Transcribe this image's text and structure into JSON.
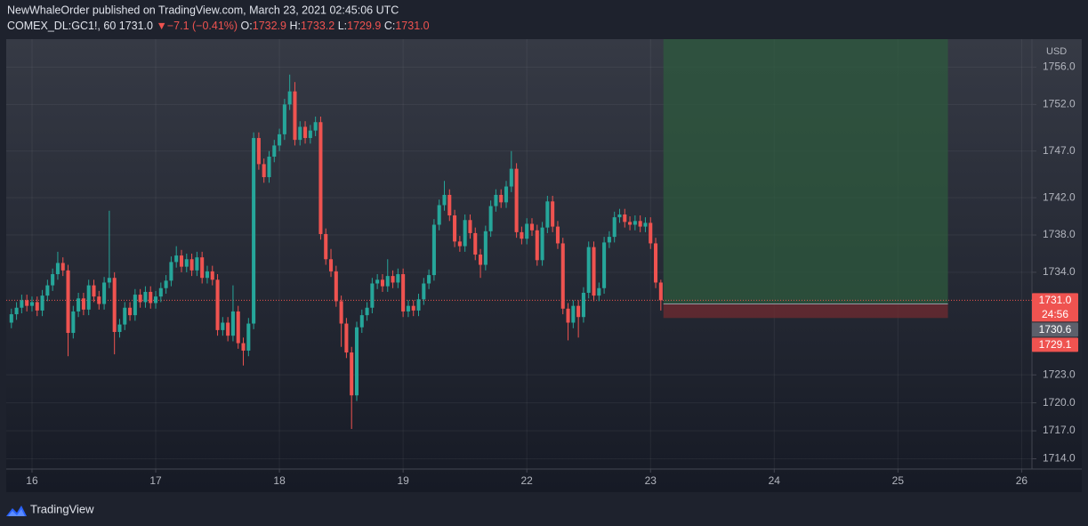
{
  "header": {
    "publisher": "NewWhaleOrder published on TradingView.com, March 23, 2021 02:45:06 UTC",
    "symbol": "COMEX_DL:GC1!, 60",
    "last": "1731.0",
    "arrow": "▼",
    "change": "−7.1 (−0.41%)",
    "ohlc": [
      {
        "key": "O:",
        "value": "1732.9"
      },
      {
        "key": "H:",
        "value": "1733.2"
      },
      {
        "key": "L:",
        "value": "1729.9"
      },
      {
        "key": "C:",
        "value": "1731.0"
      }
    ]
  },
  "footer": {
    "brand": "TradingView"
  },
  "chart_data": {
    "type": "candlestick",
    "currency": "USD",
    "up_color": "#26a69a",
    "down_color": "#ef5350",
    "grid": true,
    "xlim": [
      -1,
      198
    ],
    "xticks": [
      {
        "value": 4,
        "label": "16"
      },
      {
        "value": 28,
        "label": "17"
      },
      {
        "value": 52,
        "label": "18"
      },
      {
        "value": 76,
        "label": "19"
      },
      {
        "value": 100,
        "label": "22"
      },
      {
        "value": 124,
        "label": "23"
      },
      {
        "value": 148,
        "label": "24"
      },
      {
        "value": 172,
        "label": "25"
      },
      {
        "value": 196,
        "label": "26"
      }
    ],
    "ylim": [
      1712.9,
      1759.0
    ],
    "yticks": [
      {
        "value": 1756,
        "label": "1756.0"
      },
      {
        "value": 1752,
        "label": "1752.0"
      },
      {
        "value": 1747,
        "label": "1747.0"
      },
      {
        "value": 1742,
        "label": "1742.0"
      },
      {
        "value": 1738,
        "label": "1738.0"
      },
      {
        "value": 1734,
        "label": "1734.0"
      },
      {
        "value": 1723,
        "label": "1723.0"
      },
      {
        "value": 1720,
        "label": "1720.0"
      },
      {
        "value": 1717,
        "label": "1717.0"
      },
      {
        "value": 1714,
        "label": "1714.0"
      }
    ],
    "price_labels": [
      {
        "value": 1731.0,
        "label": "1731.0",
        "sub": "24:56",
        "color": "#ef5350"
      },
      {
        "value": 1730.6,
        "label": "1730.6",
        "color": "#5d606b"
      },
      {
        "value": 1729.1,
        "label": "1729.1",
        "color": "#ef5350"
      }
    ],
    "position": {
      "entry": 1730.6,
      "stop": 1729.1,
      "target": 1760,
      "start": 126.5,
      "end": 181.7,
      "profit_color": "#2e5a3e",
      "loss_color": "#6b2a30"
    },
    "candles": [
      [
        1728.6,
        1730.1,
        1728.0,
        1729.5
      ],
      [
        1729.5,
        1730.8,
        1728.9,
        1730.2
      ],
      [
        1730.2,
        1731.6,
        1729.6,
        1731.0
      ],
      [
        1731.0,
        1731.6,
        1729.8,
        1730.4
      ],
      [
        1730.4,
        1731.4,
        1729.8,
        1730.8
      ],
      [
        1730.8,
        1731.4,
        1729.3,
        1729.9
      ],
      [
        1729.9,
        1732.1,
        1729.3,
        1731.5
      ],
      [
        1731.5,
        1733.2,
        1730.9,
        1732.6
      ],
      [
        1732.6,
        1734.4,
        1732.0,
        1733.8
      ],
      [
        1733.8,
        1736.2,
        1733.2,
        1735.0
      ],
      [
        1735.0,
        1735.6,
        1733.6,
        1734.2
      ],
      [
        1734.2,
        1734.8,
        1725.0,
        1727.5
      ],
      [
        1727.5,
        1730.4,
        1726.9,
        1729.8
      ],
      [
        1729.8,
        1731.8,
        1729.2,
        1731.2
      ],
      [
        1731.2,
        1731.8,
        1729.4,
        1730.0
      ],
      [
        1730.0,
        1733.2,
        1729.4,
        1732.6
      ],
      [
        1732.6,
        1733.2,
        1730.8,
        1731.4
      ],
      [
        1731.4,
        1732.0,
        1730.0,
        1730.6
      ],
      [
        1730.6,
        1733.5,
        1730.0,
        1732.9
      ],
      [
        1732.9,
        1740.6,
        1732.3,
        1733.4
      ],
      [
        1733.4,
        1734.0,
        1725.2,
        1727.6
      ],
      [
        1727.6,
        1729.0,
        1727.0,
        1728.4
      ],
      [
        1728.4,
        1730.8,
        1727.8,
        1730.2
      ],
      [
        1730.2,
        1730.8,
        1728.8,
        1729.4
      ],
      [
        1729.4,
        1732.2,
        1728.8,
        1731.6
      ],
      [
        1731.6,
        1732.2,
        1730.2,
        1730.8
      ],
      [
        1730.8,
        1732.5,
        1730.2,
        1731.9
      ],
      [
        1731.9,
        1732.5,
        1730.1,
        1730.7
      ],
      [
        1730.7,
        1732.0,
        1730.1,
        1731.4
      ],
      [
        1731.4,
        1732.9,
        1730.8,
        1732.3
      ],
      [
        1732.3,
        1733.7,
        1731.7,
        1733.1
      ],
      [
        1733.1,
        1735.7,
        1732.5,
        1735.1
      ],
      [
        1735.1,
        1736.8,
        1734.5,
        1735.8
      ],
      [
        1735.8,
        1736.4,
        1734.0,
        1734.6
      ],
      [
        1734.6,
        1736.0,
        1734.0,
        1735.4
      ],
      [
        1735.4,
        1736.0,
        1733.6,
        1734.2
      ],
      [
        1734.2,
        1736.2,
        1733.6,
        1735.6
      ],
      [
        1735.6,
        1736.2,
        1732.8,
        1733.4
      ],
      [
        1733.4,
        1734.7,
        1732.8,
        1734.1
      ],
      [
        1734.1,
        1734.7,
        1732.6,
        1733.2
      ],
      [
        1733.2,
        1733.8,
        1727.2,
        1727.8
      ],
      [
        1727.8,
        1729.2,
        1727.2,
        1728.6
      ],
      [
        1728.6,
        1729.2,
        1726.6,
        1727.2
      ],
      [
        1727.2,
        1732.6,
        1726.6,
        1729.8
      ],
      [
        1729.8,
        1730.4,
        1725.8,
        1726.4
      ],
      [
        1726.4,
        1727.0,
        1724.0,
        1725.6
      ],
      [
        1725.6,
        1729.1,
        1725.0,
        1728.5
      ],
      [
        1728.5,
        1749.0,
        1727.9,
        1748.4
      ],
      [
        1748.4,
        1749.0,
        1745.0,
        1745.6
      ],
      [
        1745.6,
        1746.2,
        1743.6,
        1744.2
      ],
      [
        1744.2,
        1747.0,
        1743.6,
        1746.4
      ],
      [
        1746.4,
        1748.2,
        1745.8,
        1747.6
      ],
      [
        1747.6,
        1749.4,
        1747.0,
        1748.8
      ],
      [
        1748.8,
        1752.6,
        1748.2,
        1752.0
      ],
      [
        1752.0,
        1755.2,
        1751.4,
        1753.4
      ],
      [
        1753.4,
        1754.4,
        1747.6,
        1748.2
      ],
      [
        1748.2,
        1750.2,
        1747.6,
        1749.6
      ],
      [
        1749.6,
        1750.2,
        1747.8,
        1748.4
      ],
      [
        1748.4,
        1749.8,
        1747.8,
        1749.2
      ],
      [
        1749.2,
        1750.7,
        1748.6,
        1750.1
      ],
      [
        1750.1,
        1750.7,
        1737.5,
        1738.1
      ],
      [
        1738.1,
        1738.7,
        1734.8,
        1735.4
      ],
      [
        1735.4,
        1736.5,
        1733.5,
        1734.1
      ],
      [
        1734.1,
        1734.7,
        1730.3,
        1730.9
      ],
      [
        1730.9,
        1731.5,
        1726.0,
        1728.5
      ],
      [
        1728.5,
        1729.1,
        1724.8,
        1725.4
      ],
      [
        1725.4,
        1726.0,
        1717.2,
        1720.8
      ],
      [
        1720.8,
        1728.7,
        1720.2,
        1728.1
      ],
      [
        1728.1,
        1730.0,
        1727.5,
        1729.4
      ],
      [
        1729.4,
        1730.8,
        1728.8,
        1730.2
      ],
      [
        1730.2,
        1733.4,
        1729.6,
        1732.8
      ],
      [
        1732.8,
        1733.8,
        1732.2,
        1733.2
      ],
      [
        1733.2,
        1733.8,
        1731.9,
        1732.5
      ],
      [
        1732.5,
        1735.4,
        1731.9,
        1733.6
      ],
      [
        1733.6,
        1734.2,
        1732.3,
        1732.9
      ],
      [
        1732.9,
        1734.4,
        1732.3,
        1733.8
      ],
      [
        1733.8,
        1734.4,
        1729.2,
        1729.8
      ],
      [
        1729.8,
        1731.0,
        1729.2,
        1730.4
      ],
      [
        1730.4,
        1731.0,
        1729.3,
        1729.9
      ],
      [
        1729.9,
        1731.7,
        1729.3,
        1731.1
      ],
      [
        1731.1,
        1733.4,
        1730.5,
        1732.8
      ],
      [
        1732.8,
        1734.3,
        1732.2,
        1733.7
      ],
      [
        1733.7,
        1739.7,
        1733.1,
        1739.1
      ],
      [
        1739.1,
        1741.8,
        1738.5,
        1741.2
      ],
      [
        1741.2,
        1743.8,
        1740.6,
        1742.3
      ],
      [
        1742.3,
        1742.9,
        1739.5,
        1740.1
      ],
      [
        1740.1,
        1740.7,
        1736.7,
        1737.3
      ],
      [
        1737.3,
        1737.9,
        1736.2,
        1736.8
      ],
      [
        1736.8,
        1740.2,
        1736.2,
        1739.6
      ],
      [
        1739.6,
        1740.2,
        1737.6,
        1738.2
      ],
      [
        1738.2,
        1738.8,
        1735.3,
        1735.9
      ],
      [
        1735.9,
        1736.5,
        1733.4,
        1734.8
      ],
      [
        1734.8,
        1739.0,
        1734.2,
        1738.4
      ],
      [
        1738.4,
        1741.7,
        1737.8,
        1741.1
      ],
      [
        1741.1,
        1742.9,
        1740.5,
        1742.3
      ],
      [
        1742.3,
        1742.9,
        1740.9,
        1741.5
      ],
      [
        1741.5,
        1743.8,
        1740.9,
        1743.2
      ],
      [
        1743.2,
        1747.0,
        1742.6,
        1745.1
      ],
      [
        1745.1,
        1745.7,
        1737.7,
        1738.3
      ],
      [
        1738.3,
        1738.9,
        1737.0,
        1737.6
      ],
      [
        1737.6,
        1739.8,
        1737.0,
        1739.2
      ],
      [
        1739.2,
        1739.8,
        1737.9,
        1738.5
      ],
      [
        1738.5,
        1739.1,
        1734.7,
        1735.3
      ],
      [
        1735.3,
        1739.4,
        1734.7,
        1738.8
      ],
      [
        1738.8,
        1742.2,
        1738.2,
        1741.6
      ],
      [
        1741.6,
        1742.2,
        1738.3,
        1738.9
      ],
      [
        1738.9,
        1739.5,
        1736.5,
        1737.1
      ],
      [
        1737.1,
        1737.7,
        1729.5,
        1730.1
      ],
      [
        1730.1,
        1730.7,
        1726.7,
        1728.6
      ],
      [
        1728.6,
        1731.0,
        1728.0,
        1730.4
      ],
      [
        1730.4,
        1731.0,
        1727.0,
        1729.2
      ],
      [
        1729.2,
        1732.4,
        1728.6,
        1731.8
      ],
      [
        1731.8,
        1737.3,
        1731.2,
        1736.7
      ],
      [
        1736.7,
        1737.3,
        1730.9,
        1731.5
      ],
      [
        1731.5,
        1732.9,
        1730.9,
        1732.3
      ],
      [
        1732.3,
        1737.8,
        1731.7,
        1737.2
      ],
      [
        1737.2,
        1738.4,
        1736.6,
        1737.8
      ],
      [
        1737.8,
        1740.5,
        1737.2,
        1739.9
      ],
      [
        1739.9,
        1740.8,
        1739.3,
        1740.2
      ],
      [
        1740.2,
        1740.8,
        1738.8,
        1739.4
      ],
      [
        1739.4,
        1740.0,
        1738.5,
        1739.1
      ],
      [
        1739.1,
        1740.1,
        1738.5,
        1739.5
      ],
      [
        1739.5,
        1740.1,
        1738.3,
        1738.9
      ],
      [
        1738.9,
        1739.9,
        1738.3,
        1739.3
      ],
      [
        1739.3,
        1739.9,
        1736.5,
        1737.1
      ],
      [
        1737.1,
        1737.7,
        1732.3,
        1732.9
      ],
      [
        1732.9,
        1733.2,
        1729.9,
        1731.0
      ]
    ]
  }
}
